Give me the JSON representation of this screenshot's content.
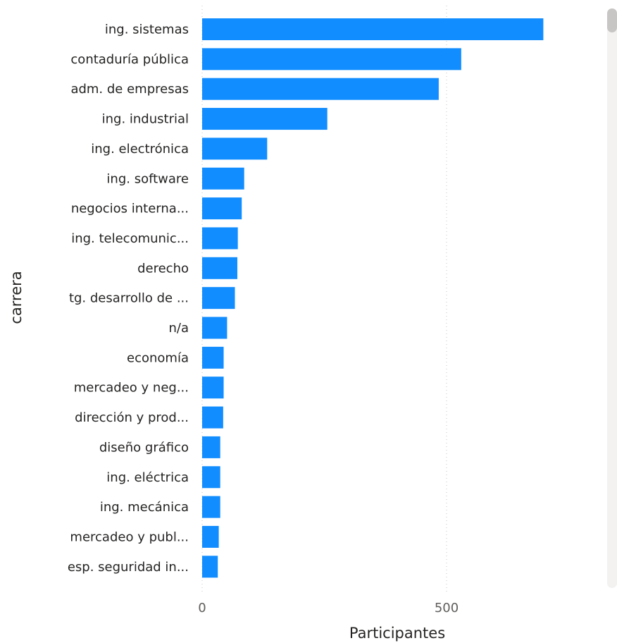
{
  "chart_data": {
    "type": "bar",
    "orientation": "horizontal",
    "categories": [
      "ing. sistemas",
      "contaduría pública",
      "adm. de empresas",
      "ing. industrial",
      "ing. electrónica",
      "ing. software",
      "negocios interna...",
      "ing. telecomunic...",
      "derecho",
      "tg. desarrollo de ...",
      "n/a",
      "economía",
      "mercadeo y neg...",
      "dirección y prod...",
      "diseño gráfico",
      "ing. eléctrica",
      "ing. mecánica",
      "mercadeo y publ...",
      "esp. seguridad in..."
    ],
    "values": [
      698,
      530,
      484,
      256,
      133,
      86,
      81,
      73,
      72,
      67,
      51,
      44,
      44,
      43,
      37,
      37,
      37,
      34,
      32
    ],
    "xlabel": "Participantes",
    "ylabel": "carrera",
    "xticks": [
      "0",
      "500"
    ],
    "xlim": [
      0,
      850
    ],
    "grid": "vertical dotted",
    "bar_color": "#118DFF"
  }
}
